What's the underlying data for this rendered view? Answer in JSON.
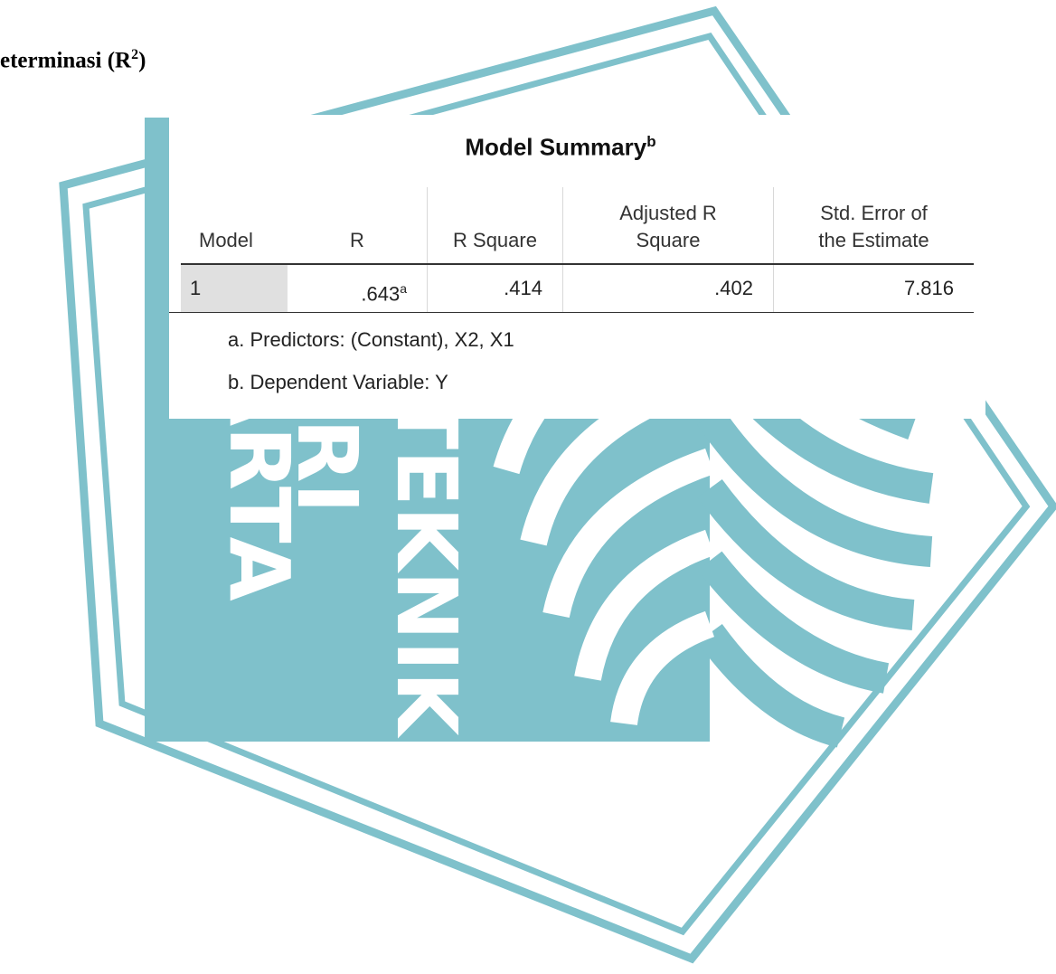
{
  "heading": {
    "text": "eterminasi (R",
    "sup": "2",
    "tail": ")"
  },
  "watermark": {
    "lines": [
      "ITEKNIK",
      "ERI",
      "ARTA"
    ]
  },
  "table": {
    "title": "Model Summary",
    "title_sup": "b",
    "headers": [
      [
        "Model"
      ],
      [
        "R"
      ],
      [
        "R Square"
      ],
      [
        "Adjusted R",
        "Square"
      ],
      [
        "Std. Error of",
        "the Estimate"
      ]
    ],
    "rows": [
      [
        {
          "text": "1"
        },
        {
          "text": ".643",
          "sup": "a"
        },
        {
          "text": ".414"
        },
        {
          "text": ".402"
        },
        {
          "text": "7.816"
        }
      ]
    ],
    "footnotes": [
      "a. Predictors: (Constant), X2, X1",
      "b. Dependent Variable: Y"
    ]
  }
}
